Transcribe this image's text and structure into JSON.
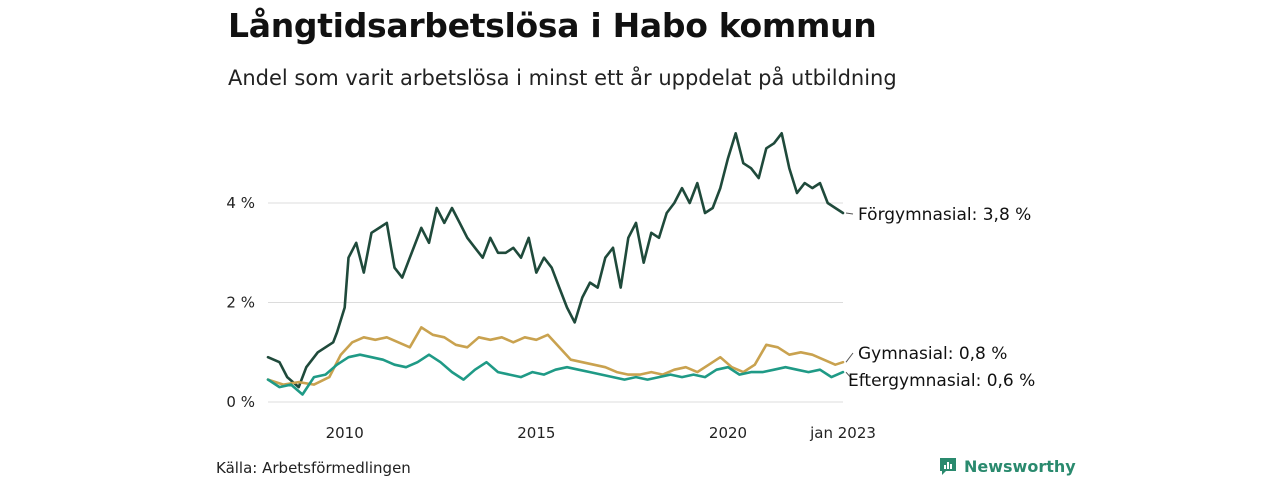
{
  "title": "Långtidsarbetslösa i Habo kommun",
  "subtitle": "Andel som varit arbetslösa i minst ett år uppdelat på utbildning",
  "source": "Källa: Arbetsförmedlingen",
  "brand": {
    "name": "Newsworthy",
    "icon": "newsworthy-logo-icon",
    "color": "#2a8a6e"
  },
  "chart_data": {
    "type": "line",
    "x_unit": "year",
    "xlim": [
      2008.0,
      2023.0
    ],
    "ylim": [
      0,
      5.6
    ],
    "y_ticks": [
      {
        "value": 0,
        "label": "0 %"
      },
      {
        "value": 2,
        "label": "2 %"
      },
      {
        "value": 4,
        "label": "4 %"
      }
    ],
    "x_ticks": [
      {
        "value": 2010,
        "label": "2010"
      },
      {
        "value": 2015,
        "label": "2015"
      },
      {
        "value": 2020,
        "label": "2020"
      },
      {
        "value": 2023.0,
        "label": "jan 2023"
      }
    ],
    "grid": true,
    "series": [
      {
        "name": "Förgymnasial",
        "end_label": "Förgymnasial: 3,8 %",
        "color": "#1f4a3b",
        "x": [
          2008.0,
          2008.3,
          2008.5,
          2008.8,
          2009.0,
          2009.3,
          2009.5,
          2009.7,
          2009.8,
          2010.0,
          2010.1,
          2010.3,
          2010.5,
          2010.7,
          2010.9,
          2011.1,
          2011.3,
          2011.5,
          2011.7,
          2012.0,
          2012.2,
          2012.4,
          2012.6,
          2012.8,
          2013.0,
          2013.2,
          2013.4,
          2013.6,
          2013.8,
          2014.0,
          2014.2,
          2014.4,
          2014.6,
          2014.8,
          2015.0,
          2015.2,
          2015.4,
          2015.6,
          2015.8,
          2016.0,
          2016.2,
          2016.4,
          2016.6,
          2016.8,
          2017.0,
          2017.2,
          2017.4,
          2017.6,
          2017.8,
          2018.0,
          2018.2,
          2018.4,
          2018.6,
          2018.8,
          2019.0,
          2019.2,
          2019.4,
          2019.6,
          2019.8,
          2020.0,
          2020.2,
          2020.4,
          2020.6,
          2020.8,
          2021.0,
          2021.2,
          2021.4,
          2021.6,
          2021.8,
          2022.0,
          2022.2,
          2022.4,
          2022.6,
          2022.8,
          2023.0
        ],
        "values": [
          0.9,
          0.8,
          0.5,
          0.3,
          0.7,
          1.0,
          1.1,
          1.2,
          1.4,
          1.9,
          2.9,
          3.2,
          2.6,
          3.4,
          3.5,
          3.6,
          2.7,
          2.5,
          2.9,
          3.5,
          3.2,
          3.9,
          3.6,
          3.9,
          3.6,
          3.3,
          3.1,
          2.9,
          3.3,
          3.0,
          3.0,
          3.1,
          2.9,
          3.3,
          2.6,
          2.9,
          2.7,
          2.3,
          1.9,
          1.6,
          2.1,
          2.4,
          2.3,
          2.9,
          3.1,
          2.3,
          3.3,
          3.6,
          2.8,
          3.4,
          3.3,
          3.8,
          4.0,
          4.3,
          4.0,
          4.4,
          3.8,
          3.9,
          4.3,
          4.9,
          5.4,
          4.8,
          4.7,
          4.5,
          5.1,
          5.2,
          5.4,
          4.7,
          4.2,
          4.4,
          4.3,
          4.4,
          4.0,
          3.9,
          3.8
        ]
      },
      {
        "name": "Gymnasial",
        "end_label": "Gymnasial: 0,8 %",
        "color": "#c9a24f",
        "x": [
          2008.0,
          2008.4,
          2008.8,
          2009.2,
          2009.6,
          2009.9,
          2010.2,
          2010.5,
          2010.8,
          2011.1,
          2011.4,
          2011.7,
          2012.0,
          2012.3,
          2012.6,
          2012.9,
          2013.2,
          2013.5,
          2013.8,
          2014.1,
          2014.4,
          2014.7,
          2015.0,
          2015.3,
          2015.6,
          2015.9,
          2016.2,
          2016.5,
          2016.8,
          2017.1,
          2017.4,
          2017.7,
          2018.0,
          2018.3,
          2018.6,
          2018.9,
          2019.2,
          2019.5,
          2019.8,
          2020.1,
          2020.4,
          2020.7,
          2021.0,
          2021.3,
          2021.6,
          2021.9,
          2022.2,
          2022.5,
          2022.8,
          2023.0
        ],
        "values": [
          0.45,
          0.35,
          0.4,
          0.35,
          0.5,
          0.95,
          1.2,
          1.3,
          1.25,
          1.3,
          1.2,
          1.1,
          1.5,
          1.35,
          1.3,
          1.15,
          1.1,
          1.3,
          1.25,
          1.3,
          1.2,
          1.3,
          1.25,
          1.35,
          1.1,
          0.85,
          0.8,
          0.75,
          0.7,
          0.6,
          0.55,
          0.55,
          0.6,
          0.55,
          0.65,
          0.7,
          0.6,
          0.75,
          0.9,
          0.7,
          0.6,
          0.75,
          1.15,
          1.1,
          0.95,
          1.0,
          0.95,
          0.85,
          0.75,
          0.8
        ]
      },
      {
        "name": "Eftergymnasial",
        "end_label": "Eftergymnasial: 0,6 %",
        "color": "#1f9a86",
        "x": [
          2008.0,
          2008.3,
          2008.6,
          2008.9,
          2009.2,
          2009.5,
          2009.8,
          2010.1,
          2010.4,
          2010.7,
          2011.0,
          2011.3,
          2011.6,
          2011.9,
          2012.2,
          2012.5,
          2012.8,
          2013.1,
          2013.4,
          2013.7,
          2014.0,
          2014.3,
          2014.6,
          2014.9,
          2015.2,
          2015.5,
          2015.8,
          2016.1,
          2016.4,
          2016.7,
          2017.0,
          2017.3,
          2017.6,
          2017.9,
          2018.2,
          2018.5,
          2018.8,
          2019.1,
          2019.4,
          2019.7,
          2020.0,
          2020.3,
          2020.6,
          2020.9,
          2021.2,
          2021.5,
          2021.8,
          2022.1,
          2022.4,
          2022.7,
          2023.0
        ],
        "values": [
          0.45,
          0.3,
          0.35,
          0.15,
          0.5,
          0.55,
          0.75,
          0.9,
          0.95,
          0.9,
          0.85,
          0.75,
          0.7,
          0.8,
          0.95,
          0.8,
          0.6,
          0.45,
          0.65,
          0.8,
          0.6,
          0.55,
          0.5,
          0.6,
          0.55,
          0.65,
          0.7,
          0.65,
          0.6,
          0.55,
          0.5,
          0.45,
          0.5,
          0.45,
          0.5,
          0.55,
          0.5,
          0.55,
          0.5,
          0.65,
          0.7,
          0.55,
          0.6,
          0.6,
          0.65,
          0.7,
          0.65,
          0.6,
          0.65,
          0.5,
          0.6
        ]
      }
    ]
  }
}
